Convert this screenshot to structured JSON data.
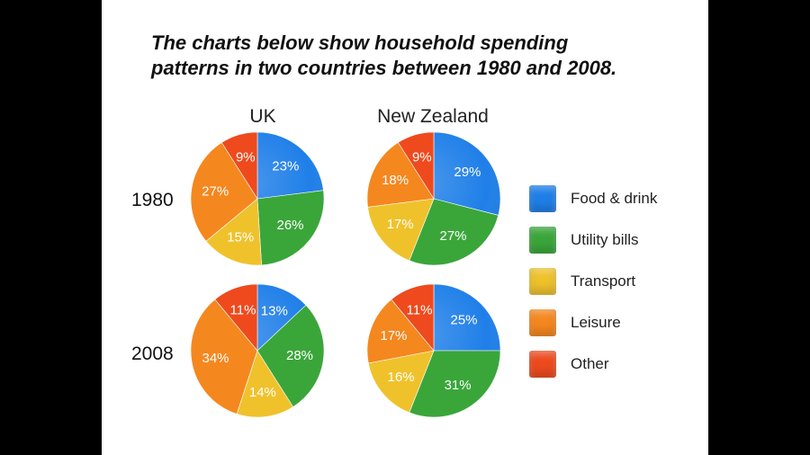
{
  "title_lines": [
    "The charts below show household spending",
    "patterns in two countries between 1980 and 2008."
  ],
  "columns": [
    "UK",
    "New Zealand"
  ],
  "rows": [
    "1980",
    "2008"
  ],
  "legend": [
    {
      "label": "Food & drink",
      "color": "#1f7fe8"
    },
    {
      "label": "Utility bills",
      "color": "#3aa63a"
    },
    {
      "label": "Transport",
      "color": "#efc22c"
    },
    {
      "label": "Leisure",
      "color": "#f5871f"
    },
    {
      "label": "Other",
      "color": "#ee4a1e"
    }
  ],
  "chart_data": [
    {
      "type": "pie",
      "country": "UK",
      "year": "1980",
      "categories": [
        "Food & drink",
        "Utility bills",
        "Transport",
        "Leisure",
        "Other"
      ],
      "values": [
        23,
        26,
        15,
        27,
        9
      ],
      "labels": [
        "23%",
        "26%",
        "15%",
        "27%",
        "9%"
      ]
    },
    {
      "type": "pie",
      "country": "New Zealand",
      "year": "1980",
      "categories": [
        "Food & drink",
        "Utility bills",
        "Transport",
        "Leisure",
        "Other"
      ],
      "values": [
        29,
        27,
        17,
        18,
        9
      ],
      "labels": [
        "29%",
        "27%",
        "17%",
        "18%",
        "9%"
      ]
    },
    {
      "type": "pie",
      "country": "UK",
      "year": "2008",
      "categories": [
        "Food & drink",
        "Utility bills",
        "Transport",
        "Leisure",
        "Other"
      ],
      "values": [
        13,
        28,
        14,
        34,
        11
      ],
      "labels": [
        "13%",
        "28%",
        "14%",
        "34%",
        "11%"
      ]
    },
    {
      "type": "pie",
      "country": "New Zealand",
      "year": "2008",
      "categories": [
        "Food & drink",
        "Utility bills",
        "Transport",
        "Leisure",
        "Other"
      ],
      "values": [
        25,
        31,
        16,
        17,
        11
      ],
      "labels": [
        "25%",
        "31%",
        "16%",
        "17%",
        "11%"
      ]
    }
  ]
}
